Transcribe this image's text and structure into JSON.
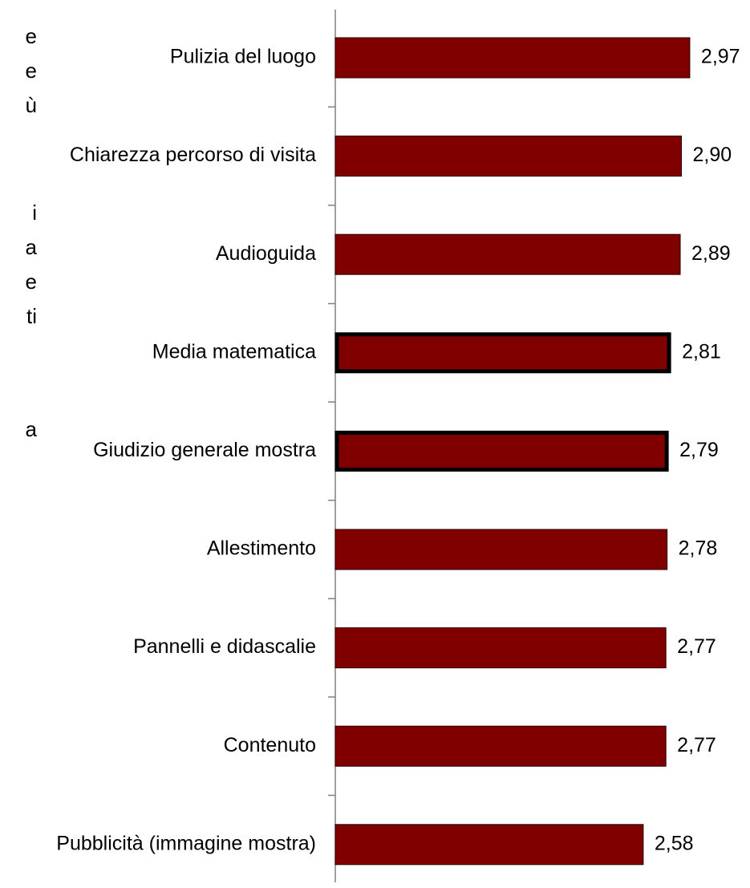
{
  "left_text_fragments": [
    "e",
    "e",
    "ù",
    "i",
    "a",
    "e",
    "ti",
    "a"
  ],
  "chart_data": {
    "type": "bar",
    "orientation": "horizontal",
    "categories": [
      "Pulizia del luogo",
      "Chiarezza percorso di visita",
      "Audioguida",
      "Media matematica",
      "Giudizio generale mostra",
      "Allestimento",
      "Pannelli e didascalie",
      "Contenuto",
      "Pubblicità (immagine mostra)"
    ],
    "values": [
      2.97,
      2.9,
      2.89,
      2.81,
      2.79,
      2.78,
      2.77,
      2.77,
      2.58
    ],
    "value_labels": [
      "2,97",
      "2,90",
      "2,89",
      "2,81",
      "2,79",
      "2,78",
      "2,77",
      "2,77",
      "2,58"
    ],
    "highlighted": [
      "Media matematica",
      "Giudizio generale mostra"
    ],
    "bar_color": "#800000",
    "highlight_border_color": "#000000",
    "title": "",
    "xlabel": "",
    "ylabel": "",
    "grid": false,
    "legend": "none"
  }
}
